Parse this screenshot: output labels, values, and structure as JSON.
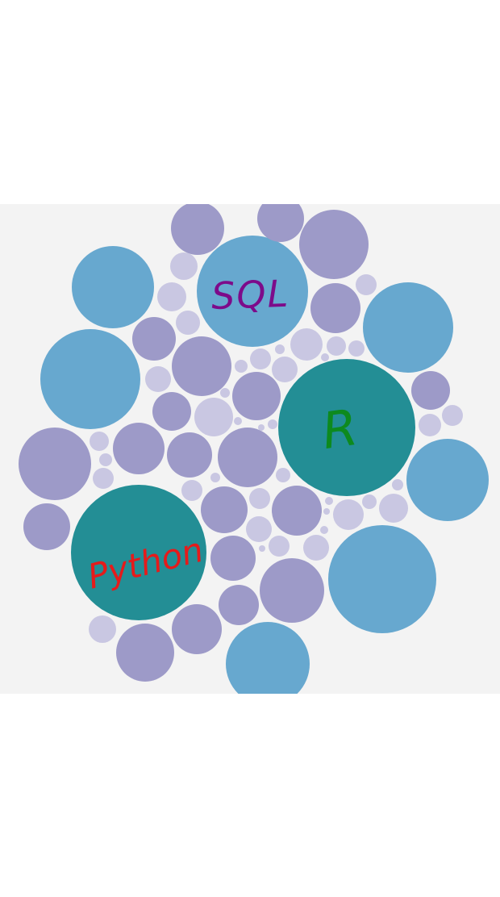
{
  "colors": {
    "background": "#ffffff",
    "panel": "#f3f3f3",
    "blue": "#67a8cf",
    "teal": "#238e95",
    "purple": "#9d9ac8",
    "lavender": "#c9c7e2",
    "label_sql": "#7d0b8a",
    "label_r": "#0d8a1e",
    "label_python": "#e51b1b"
  },
  "labels": {
    "sql": "SQL",
    "r": "R",
    "python": "Python"
  }
}
